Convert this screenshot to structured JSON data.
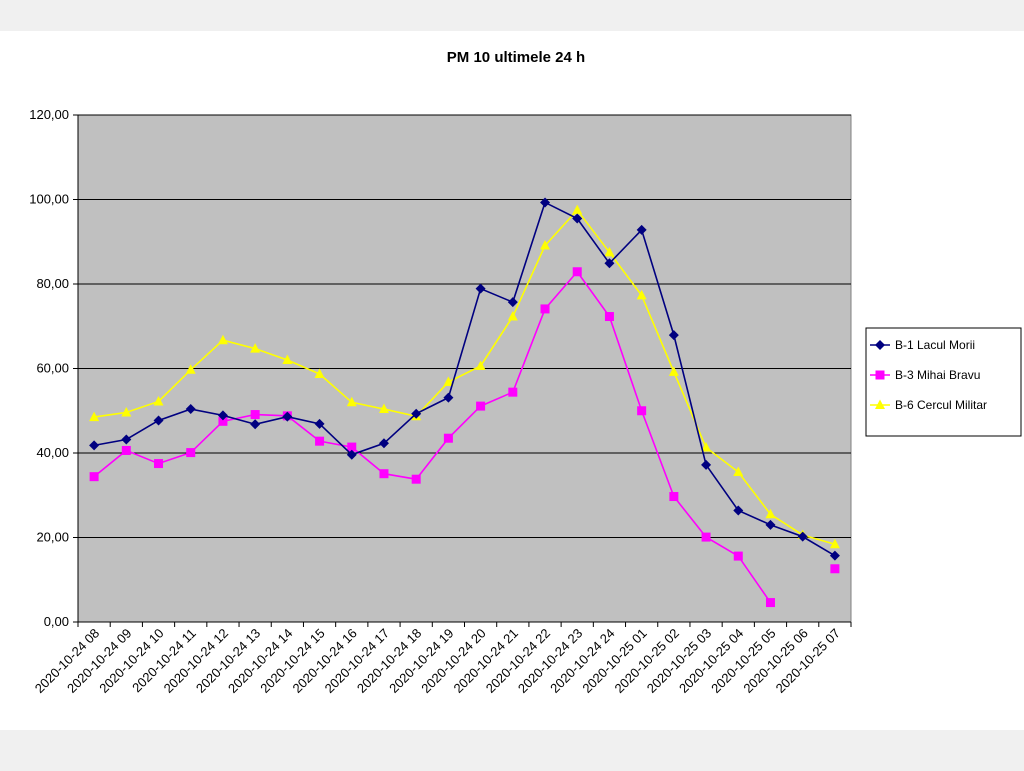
{
  "chart_data": {
    "type": "line",
    "title": "PM 10 ultimele 24 h",
    "xlabel": "",
    "ylabel": "",
    "ylim": [
      0,
      120
    ],
    "y_ticks": [
      "0,00",
      "20,00",
      "40,00",
      "60,00",
      "80,00",
      "100,00",
      "120,00"
    ],
    "grid": "horizontal",
    "legend_position": "right",
    "categories": [
      "2020-10-24 08",
      "2020-10-24 09",
      "2020-10-24 10",
      "2020-10-24 11",
      "2020-10-24 12",
      "2020-10-24 13",
      "2020-10-24 14",
      "2020-10-24 15",
      "2020-10-24 16",
      "2020-10-24 17",
      "2020-10-24 18",
      "2020-10-24 19",
      "2020-10-24 20",
      "2020-10-24 21",
      "2020-10-24 22",
      "2020-10-24 23",
      "2020-10-24 24",
      "2020-10-25 01",
      "2020-10-25 02",
      "2020-10-25 03",
      "2020-10-25 04",
      "2020-10-25 05",
      "2020-10-25 06",
      "2020-10-25 07"
    ],
    "series": [
      {
        "name": "B-1 Lacul Morii",
        "color": "#000080",
        "marker": "diamond",
        "values": [
          41.8,
          43.2,
          47.7,
          50.4,
          48.9,
          46.8,
          48.6,
          46.9,
          39.6,
          42.3,
          49.3,
          53.1,
          78.9,
          75.7,
          99.3,
          95.5,
          84.9,
          92.8,
          67.9,
          37.2,
          26.4,
          23.0,
          20.2,
          15.7
        ]
      },
      {
        "name": "B-3 Mihai Bravu",
        "color": "#ff00ff",
        "marker": "square",
        "values": [
          34.4,
          40.6,
          37.5,
          40.1,
          47.5,
          49.1,
          48.8,
          42.8,
          41.4,
          35.1,
          33.8,
          43.5,
          51.1,
          54.4,
          74.1,
          82.9,
          72.3,
          50.0,
          29.7,
          20.1,
          15.6,
          4.6,
          null,
          12.6
        ]
      },
      {
        "name": "B-6 Cercul Militar",
        "color": "#ffff00",
        "marker": "triangle",
        "values": [
          48.5,
          49.6,
          52.2,
          59.7,
          66.7,
          64.7,
          62.0,
          58.7,
          52.0,
          50.4,
          48.7,
          56.8,
          60.6,
          72.3,
          89.1,
          97.5,
          87.5,
          77.3,
          59.2,
          41.3,
          35.5,
          25.5,
          20.6,
          18.4
        ]
      }
    ]
  }
}
